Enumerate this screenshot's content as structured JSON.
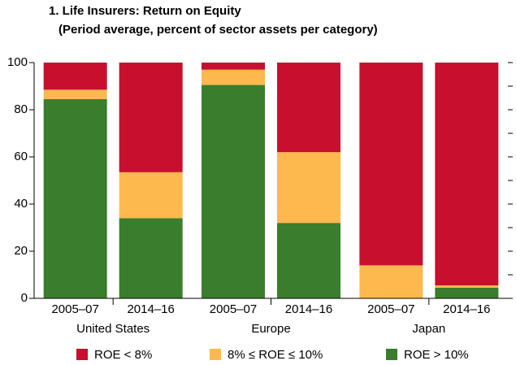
{
  "chart_data": {
    "type": "stacked_bar",
    "title": "1. Life Insurers: Return on Equity",
    "subtitle": "(Period average, percent of sector assets per category)",
    "categories": [
      "2005–07",
      "2014–16",
      "2005–07",
      "2014–16",
      "2005–07",
      "2014–16"
    ],
    "groups": [
      "United States",
      "Europe",
      "Japan"
    ],
    "series": [
      {
        "name": "ROE < 8%",
        "color": "#c8102e",
        "values": [
          11.5,
          46.5,
          3,
          38,
          86,
          94.5
        ]
      },
      {
        "name": "8% ≤ ROE ≤ 10%",
        "color": "#fdb94e",
        "values": [
          4,
          19.5,
          6.5,
          30,
          14,
          1
        ]
      },
      {
        "name": "ROE > 10%",
        "color": "#3a7d2c",
        "values": [
          84.5,
          34,
          90.5,
          32,
          0,
          4.5
        ]
      }
    ],
    "ylim": [
      0,
      100
    ],
    "yticks": [
      0,
      20,
      40,
      60,
      80,
      100
    ],
    "minor_yticks": [
      0,
      10,
      20,
      30,
      40,
      50,
      60,
      70,
      80,
      90,
      100
    ]
  }
}
